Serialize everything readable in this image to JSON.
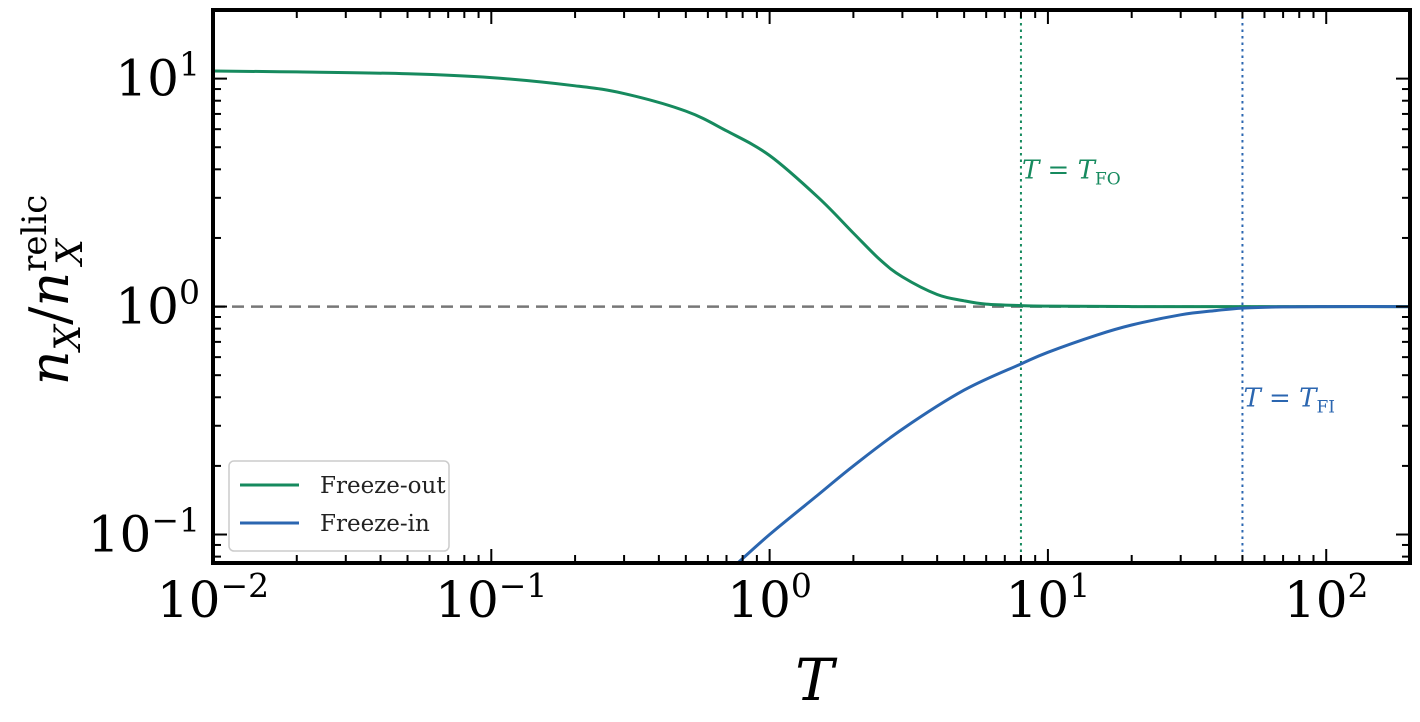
{
  "chart_data": {
    "type": "line",
    "xscale": "log",
    "yscale": "log",
    "xlim": [
      0.01,
      200
    ],
    "ylim": [
      0.075,
      20
    ],
    "xlabel": "T",
    "ylabel": {
      "base": "n",
      "sub": "X",
      "sep": "/",
      "base2": "n",
      "sub2": "X",
      "sup2": "relic"
    },
    "x_ticks": [
      {
        "value": 0.01,
        "base": "10",
        "exp": "−2"
      },
      {
        "value": 0.1,
        "base": "10",
        "exp": "−1"
      },
      {
        "value": 1,
        "base": "10",
        "exp": "0"
      },
      {
        "value": 10,
        "base": "10",
        "exp": "1"
      },
      {
        "value": 100,
        "base": "10",
        "exp": "2"
      }
    ],
    "y_ticks": [
      {
        "value": 0.1,
        "base": "10",
        "exp": "−1"
      },
      {
        "value": 1,
        "base": "10",
        "exp": "0"
      },
      {
        "value": 10,
        "base": "10",
        "exp": "1"
      }
    ],
    "series": [
      {
        "name": "Freeze-out",
        "color": "#168a5e",
        "x": [
          0.01,
          0.02,
          0.05,
          0.1,
          0.2,
          0.3,
          0.5,
          0.7,
          1.0,
          1.5,
          2.0,
          2.5,
          3.0,
          4.0,
          5.0,
          6.0,
          8.0,
          10,
          20,
          50,
          100,
          200
        ],
        "y": [
          10.8,
          10.7,
          10.5,
          10.1,
          9.3,
          8.6,
          7.2,
          5.9,
          4.6,
          3.0,
          2.1,
          1.6,
          1.35,
          1.13,
          1.06,
          1.025,
          1.01,
          1.005,
          1.0,
          1.0,
          1.0,
          1.0
        ]
      },
      {
        "name": "Freeze-in",
        "color": "#2b66b0",
        "x": [
          0.75,
          1.0,
          1.5,
          2.0,
          3.0,
          5.0,
          8.0,
          10,
          15,
          20,
          30,
          40,
          50,
          70,
          100,
          200
        ],
        "y": [
          0.073,
          0.1,
          0.15,
          0.2,
          0.29,
          0.43,
          0.56,
          0.63,
          0.75,
          0.83,
          0.92,
          0.96,
          0.985,
          0.997,
          1.0,
          1.0
        ]
      }
    ],
    "reference_lines": [
      {
        "orientation": "horizontal",
        "value": 1,
        "style": "dashed",
        "color": "#777777"
      },
      {
        "orientation": "vertical",
        "value": 8,
        "style": "dotted",
        "color": "#168a5e"
      },
      {
        "orientation": "vertical",
        "value": 50,
        "style": "dotted",
        "color": "#2b66b0"
      }
    ],
    "annotations": [
      {
        "lhs": "T",
        "eq": " = ",
        "rhs": "T",
        "sub": "FO",
        "x": 8,
        "y": 4.0,
        "color": "#168a5e"
      },
      {
        "lhs": "T",
        "eq": " = ",
        "rhs": "T",
        "sub": "FI",
        "x": 50,
        "y": 0.4,
        "color": "#2b66b0"
      }
    ],
    "legend": {
      "placement": "lower-left",
      "entries": [
        "Freeze-out",
        "Freeze-in"
      ]
    },
    "grid": false
  }
}
